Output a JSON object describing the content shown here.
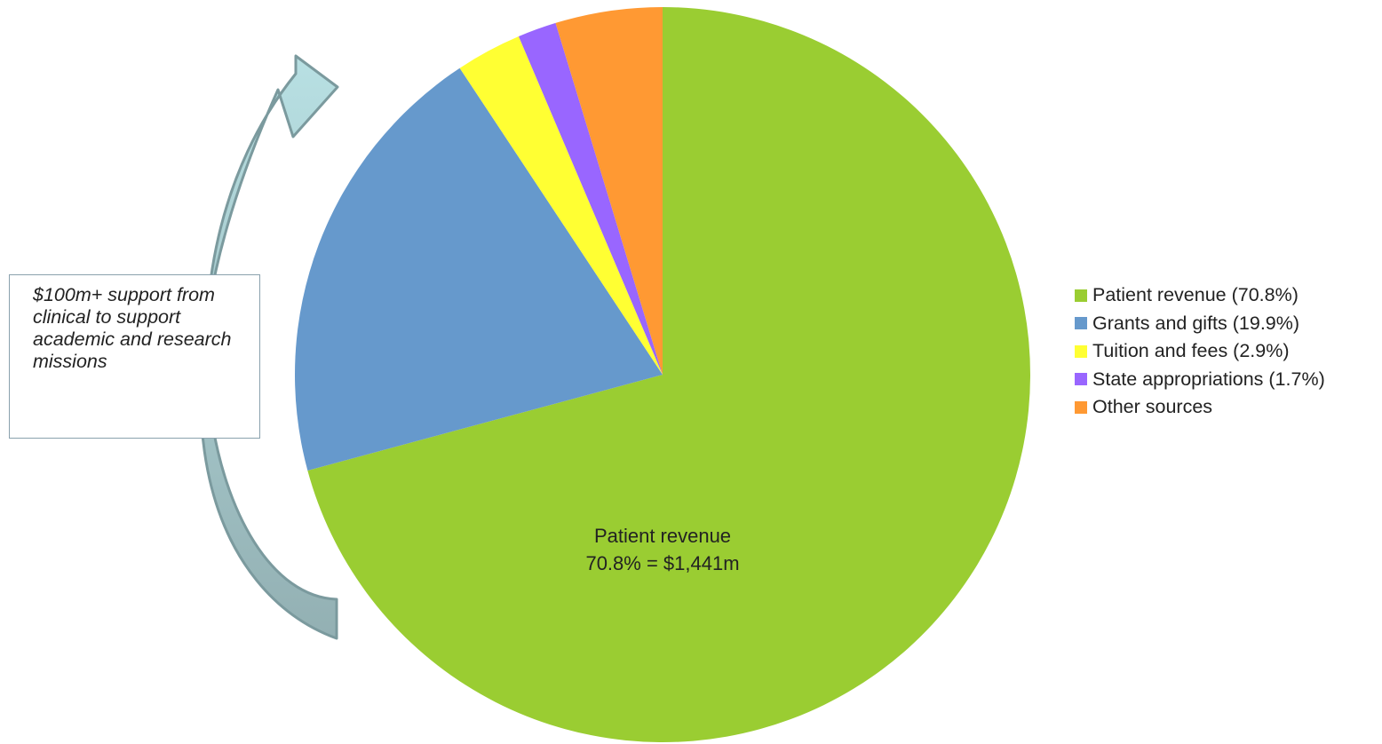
{
  "chart_data": {
    "type": "pie",
    "title": "",
    "slices": [
      {
        "label": "Patient revenue (70.8%)",
        "value": 70.8,
        "color": "#9acd32"
      },
      {
        "label": "Grants and gifts (19.9%)",
        "value": 19.9,
        "color": "#6699cc"
      },
      {
        "label": "Tuition and fees (2.9%)",
        "value": 2.9,
        "color": "#ffff33"
      },
      {
        "label": "State appropriations (1.7%)",
        "value": 1.7,
        "color": "#9966ff"
      },
      {
        "label": "Other sources",
        "value": 4.7,
        "color": "#ff9933"
      }
    ],
    "legend_position": "right",
    "slice_annotation": {
      "line1": "Patient revenue",
      "line2": "70.8% = $1,441m"
    }
  },
  "callout": {
    "text": "$100m+ support from clinical to support academic and research missions",
    "arrow_color_top": "#b8e0e3",
    "arrow_color_bottom": "#93b0b3",
    "arrow_stroke": "#7b9a9e"
  }
}
